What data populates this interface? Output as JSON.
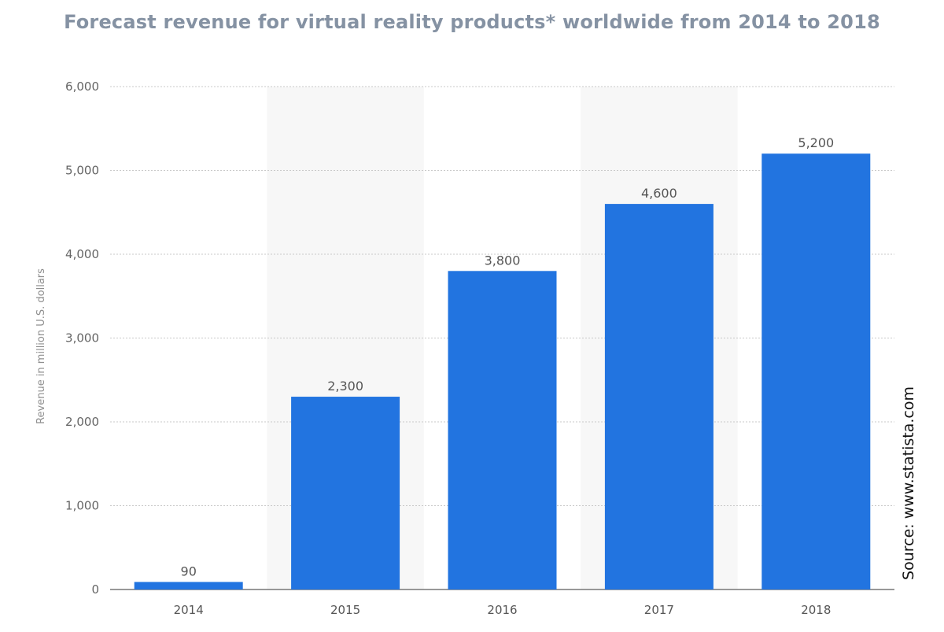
{
  "chart_data": {
    "type": "bar",
    "title": "Forecast revenue for virtual reality products* worldwide from 2014 to 2018",
    "xlabel": "",
    "ylabel": "Revenue in million U.S. dollars",
    "categories": [
      "2014",
      "2015",
      "2016",
      "2017",
      "2018"
    ],
    "values": [
      90,
      2300,
      3800,
      4600,
      5200
    ],
    "data_labels": [
      "90",
      "2,300",
      "3,800",
      "4,600",
      "5,200"
    ],
    "ylim": [
      0,
      6000
    ],
    "yticks": [
      0,
      1000,
      2000,
      3000,
      4000,
      5000,
      6000
    ],
    "ytick_labels": [
      "0",
      "1,000",
      "2,000",
      "3,000",
      "4,000",
      "5,000",
      "6,000"
    ],
    "grid": true,
    "bar_color": "#2274e0",
    "source": "Source: www.statista.com"
  }
}
